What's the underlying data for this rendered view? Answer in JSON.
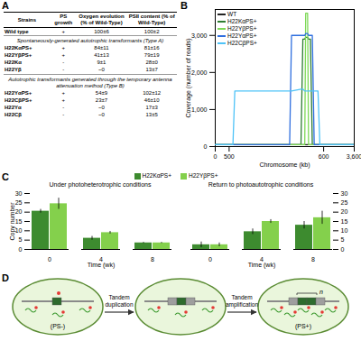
{
  "chart_data": [
    {
      "panel": "B",
      "type": "line",
      "xlabel": "Chromosome (kb)",
      "ylabel": "Coverage (number of reads)",
      "x": [
        0,
        500,
        504,
        506,
        564,
        566,
        576,
        578,
        580,
        581,
        583,
        584,
        586,
        588,
        590,
        594,
        596,
        600,
        3600
      ],
      "xlim": [
        0,
        3600
      ],
      "xticks": [
        0,
        500,
        600,
        3600
      ],
      "ylim": [
        0,
        3700
      ],
      "yticks": [
        0,
        1000,
        2000,
        3000
      ],
      "legend": "top-left",
      "series": [
        {
          "name": "WT",
          "color": "#222222",
          "values": [
            50,
            50,
            50,
            50,
            50,
            50,
            50,
            50,
            50,
            50,
            50,
            50,
            50,
            50,
            50,
            50,
            50,
            50,
            50
          ]
        },
        {
          "name": "H22KαPS+",
          "color": "#2e7d32",
          "values": [
            50,
            50,
            50,
            50,
            50,
            50,
            50,
            2900,
            2900,
            2950,
            2950,
            2900,
            2900,
            50,
            50,
            50,
            50,
            50,
            50
          ]
        },
        {
          "name": "H22YβPS+",
          "color": "#7ed957",
          "values": [
            50,
            50,
            50,
            50,
            50,
            50,
            50,
            50,
            50,
            3600,
            3600,
            50,
            50,
            50,
            50,
            50,
            50,
            50,
            50
          ]
        },
        {
          "name": "H22YαPS+",
          "color": "#2f6fdf",
          "values": [
            50,
            50,
            50,
            50,
            50,
            3000,
            3000,
            3000,
            3000,
            3050,
            3050,
            3000,
            3000,
            3000,
            50,
            50,
            50,
            50,
            50
          ]
        },
        {
          "name": "H22CβPS+",
          "color": "#4fc3f7",
          "values": [
            50,
            50,
            50,
            1500,
            1500,
            1500,
            1550,
            1550,
            1500,
            1500,
            1500,
            1500,
            1500,
            1500,
            1500,
            1500,
            50,
            50,
            50
          ]
        }
      ]
    },
    {
      "panel": "C",
      "type": "bar",
      "title": "Under photoheterotrophic conditions",
      "xlabel": "Time (wk)",
      "ylabel": "Copy number",
      "categories": [
        0,
        4,
        8
      ],
      "ylim": [
        0,
        30
      ],
      "yticks": [
        0,
        5,
        10,
        15,
        20,
        25,
        30
      ],
      "legend": "top",
      "series": [
        {
          "name": "H22KαPS+",
          "color": "#3d8b2f",
          "values": [
            20.5,
            6,
            3.5
          ],
          "errors": [
            1,
            1,
            0.3
          ]
        },
        {
          "name": "H22YβPS+",
          "color": "#84d04c",
          "values": [
            24.5,
            9,
            3.5
          ],
          "errors": [
            3,
            0.7,
            0.3
          ]
        }
      ]
    },
    {
      "type": "bar",
      "title": "Return to photoautotrophic conditions",
      "xlabel": "Time (wk)",
      "categories": [
        0,
        4,
        8
      ],
      "ylim": [
        0,
        30
      ],
      "yticks": [
        0,
        5,
        10,
        15,
        20,
        25,
        30
      ],
      "series": [
        {
          "name": "H22KαPS+",
          "color": "#3d8b2f",
          "values": [
            2.5,
            9.5,
            13
          ],
          "errors": [
            1.5,
            1.5,
            2
          ]
        },
        {
          "name": "H22YβPS+",
          "color": "#84d04c",
          "values": [
            2.5,
            15,
            17
          ],
          "errors": [
            1,
            1,
            3.5
          ]
        }
      ]
    }
  ],
  "table": {
    "panel": "A",
    "header": [
      "Strains",
      "PS growth",
      "Oxygen evolution (% of Wild-Type)",
      "PSII content (% of Wild-Type)"
    ],
    "groups": [
      {
        "rows": [
          [
            "Wild type",
            "+",
            "100±6",
            "100±2"
          ]
        ]
      },
      {
        "title": "Spontaneously-generated autotrophic transformants (Type A)",
        "rows": [
          [
            "H22KαPS+",
            "+",
            "84±11",
            "81±16"
          ],
          [
            "H22YβPS+",
            "+",
            "41±13",
            "79±19"
          ],
          [
            "H22Kα",
            "-",
            "9±1",
            "28±0"
          ],
          [
            "H22Yβ",
            "-",
            "~0",
            "13±7"
          ]
        ]
      },
      {
        "title": "Autotrophic transformants generated through the temporary antenna attenuation method (Type B)",
        "rows": [
          [
            "H22YαPS+",
            "+",
            "54±9",
            "102±12"
          ],
          [
            "H22CβPS+",
            "+",
            "23±7",
            "46±10"
          ],
          [
            "H22Yα",
            "-",
            "~0",
            "17±3"
          ],
          [
            "H22Cβ",
            "-",
            "~0",
            "13±5"
          ]
        ]
      }
    ]
  },
  "diagram": {
    "panel": "D",
    "start_label": "(PS-)",
    "end_label": "(PS+)",
    "steps": [
      "Tandem duplication",
      "Tandem amplification"
    ],
    "repeat_label": "n"
  }
}
